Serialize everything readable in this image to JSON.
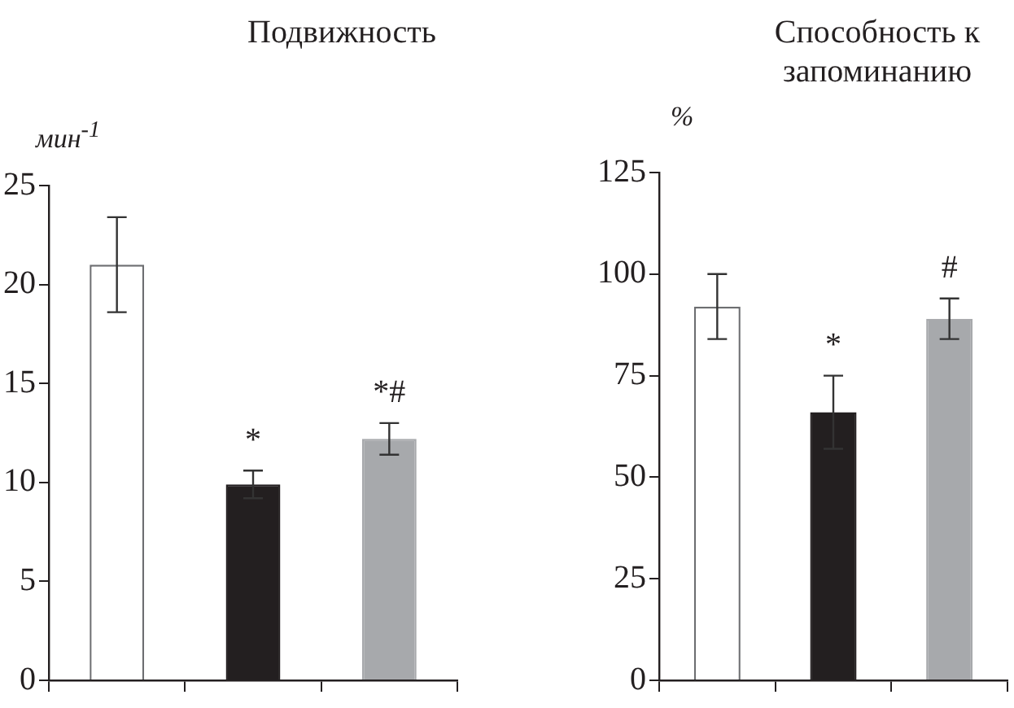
{
  "chart_data": [
    {
      "type": "bar",
      "title": "Подвижность",
      "ylabel": "мин$^{-1}$",
      "categories": [
        null,
        null,
        null
      ],
      "values": [
        21,
        9.9,
        12.2
      ],
      "colors": [
        "#ffffff",
        "#231f20",
        "#a7a9ac"
      ],
      "errors": [
        2.4,
        0.7,
        0.8
      ],
      "value_labels": [
        null,
        "*",
        "*#"
      ],
      "ylim": [
        0,
        25
      ],
      "yticks": [
        0,
        5,
        10,
        15,
        20,
        25
      ],
      "tick_labels": "y",
      "grid": false,
      "legend": false
    },
    {
      "type": "bar",
      "title": "Способность к запоминанию",
      "ylabel": "%",
      "categories": [
        null,
        null,
        null
      ],
      "values": [
        92,
        66,
        89
      ],
      "colors": [
        "#ffffff",
        "#231f20",
        "#a7a9ac"
      ],
      "errors": [
        8,
        9,
        5
      ],
      "value_labels": [
        null,
        "*",
        "#"
      ],
      "ylim": [
        0,
        125
      ],
      "yticks": [
        0,
        25,
        50,
        75,
        100,
        125
      ],
      "tick_labels": "y",
      "grid": false,
      "legend": false
    }
  ]
}
